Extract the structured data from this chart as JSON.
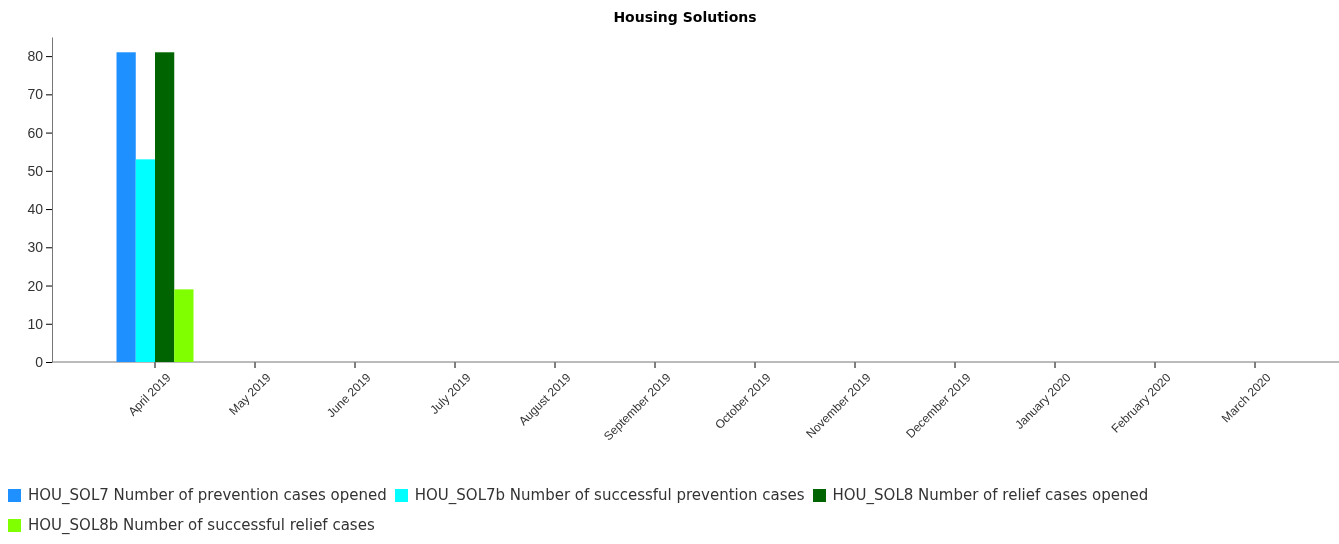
{
  "chart_data": {
    "type": "bar",
    "title": "Housing Solutions",
    "categories": [
      "April 2019",
      "May 2019",
      "June 2019",
      "July 2019",
      "August 2019",
      "September 2019",
      "October 2019",
      "November 2019",
      "December 2019",
      "January 2020",
      "February 2020",
      "March 2020"
    ],
    "series": [
      {
        "name": "HOU_SOL7 Number of prevention cases opened",
        "color": "#1e90ff",
        "values": [
          81,
          null,
          null,
          null,
          null,
          null,
          null,
          null,
          null,
          null,
          null,
          null
        ]
      },
      {
        "name": "HOU_SOL7b Number of successful prevention cases",
        "color": "#00ffff",
        "values": [
          53,
          null,
          null,
          null,
          null,
          null,
          null,
          null,
          null,
          null,
          null,
          null
        ]
      },
      {
        "name": "HOU_SOL8 Number of relief cases opened",
        "color": "#006400",
        "values": [
          81,
          null,
          null,
          null,
          null,
          null,
          null,
          null,
          null,
          null,
          null,
          null
        ]
      },
      {
        "name": "HOU_SOL8b Number of successful relief cases",
        "color": "#7fff00",
        "values": [
          19,
          null,
          null,
          null,
          null,
          null,
          null,
          null,
          null,
          null,
          null,
          null
        ]
      }
    ],
    "ylim": [
      0,
      85
    ],
    "yticks": [
      0,
      10,
      20,
      30,
      40,
      50,
      60,
      70,
      80
    ],
    "grid": false,
    "legend": "bottom"
  }
}
